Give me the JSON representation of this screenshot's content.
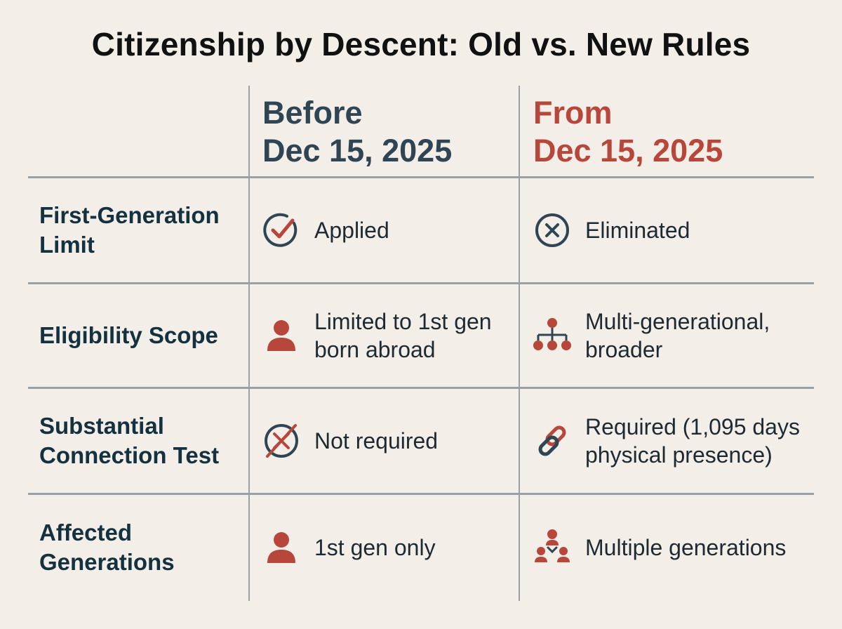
{
  "title": "Citizenship by Descent: Old vs. New Rules",
  "columns": {
    "old": {
      "line1": "Before",
      "line2": "Dec 15, 2025"
    },
    "new": {
      "line1": "From",
      "line2": "Dec 15, 2025"
    }
  },
  "colors": {
    "old_accent": "#2f4554",
    "new_accent": "#b7473b",
    "background": "#f3eee7",
    "grid": "#9aa1a6"
  },
  "rows": [
    {
      "label": {
        "line1": "First-Generation",
        "line2": "Limit"
      },
      "old": {
        "icon": "check-circle-icon",
        "line1": "Applied"
      },
      "new": {
        "icon": "x-circle-icon",
        "line1": "Eliminated"
      }
    },
    {
      "label": {
        "line1": "Eligibility Scope"
      },
      "old": {
        "icon": "person-icon",
        "line1": "Limited to 1st gen",
        "line2": "born abroad"
      },
      "new": {
        "icon": "family-tree-icon",
        "line1": "Multi-generational,",
        "line2": "broader"
      }
    },
    {
      "label": {
        "line1": "Substantial",
        "line2": "Connection Test"
      },
      "old": {
        "icon": "not-required-icon",
        "line1": "Not required"
      },
      "new": {
        "icon": "link-icon",
        "line1": "Required (1,095 days",
        "line2": "physical presence)"
      }
    },
    {
      "label": {
        "line1": "Affected",
        "line2": "Generations"
      },
      "old": {
        "icon": "person-icon",
        "line1": "1st gen only"
      },
      "new": {
        "icon": "multiple-people-icon",
        "line1": "Multiple generations"
      }
    }
  ]
}
